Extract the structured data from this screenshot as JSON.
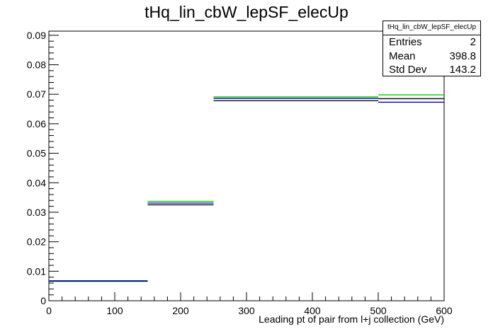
{
  "chart_data": {
    "type": "histogram",
    "title": "tHq_lin_cbW_lepSF_elecUp",
    "xlabel": "Leading pt of pair from l+j collection (GeV)",
    "ylabel": "",
    "xlim": [
      0,
      600
    ],
    "ylim": [
      0,
      0.0914
    ],
    "x_ticks": [
      0,
      100,
      200,
      300,
      400,
      500,
      600
    ],
    "x_tick_labels": [
      "0",
      "100",
      "200",
      "300",
      "400",
      "500",
      "600"
    ],
    "y_ticks": [
      0,
      0.01,
      0.02,
      0.03,
      0.04,
      0.05,
      0.06,
      0.07,
      0.08,
      0.09
    ],
    "y_tick_labels": [
      "0",
      "0.01",
      "0.02",
      "0.03",
      "0.04",
      "0.05",
      "0.06",
      "0.07",
      "0.08",
      "0.09"
    ],
    "grid": false,
    "bin_edges": [
      0,
      150,
      250,
      500,
      600
    ],
    "series": [
      {
        "color": "#00cc00",
        "values": [
          0.0068,
          0.0337,
          0.0691,
          0.0698
        ]
      },
      {
        "color": "#000000",
        "values": [
          0.0066,
          0.0325,
          0.0678,
          0.0685
        ]
      },
      {
        "color": "#0000aa",
        "values": [
          0.0067,
          0.0331,
          0.0686,
          0.0673
        ]
      }
    ],
    "stats_box": {
      "name": "tHq_lin_cbW_lepSF_elecUp",
      "rows": [
        {
          "label": "Entries",
          "value": "2"
        },
        {
          "label": "Mean",
          "value": "398.8"
        },
        {
          "label": "Std Dev",
          "value": "143.2"
        }
      ]
    }
  }
}
